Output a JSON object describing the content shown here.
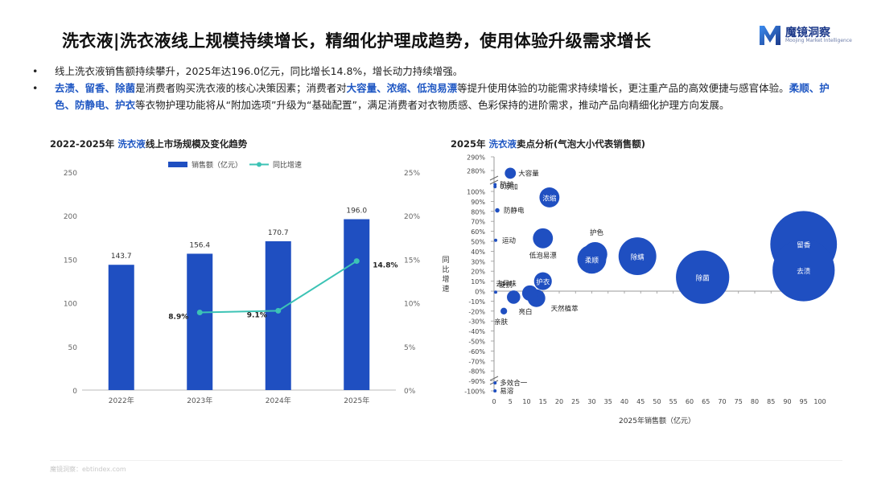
{
  "header": {
    "title": "洗衣液|洗衣液线上规模持续增长，精细化护理成趋势，使用体验升级需求增长",
    "logo_name": "魔镜洞察",
    "logo_sub": "Moojing Market Intelligence",
    "logo_color": "#1f57c3"
  },
  "bullets": {
    "symbol": "•",
    "b1": "线上洗衣液销售额持续攀升，2025年达196.0亿元，同比增长14.8%，增长动力持续增强。",
    "b2": {
      "k1": "去渍",
      "s1": "、",
      "k2": "留香",
      "s2": "、",
      "k3": "除菌",
      "t1": "是消费者购买洗衣液的核心决策因素；消费者对",
      "k4": "大容量",
      "s3": "、",
      "k5": "浓缩",
      "s4": "、",
      "k6": "低泡易漂",
      "t2": "等提升使用体验的功能需求持续增长，更注重产品的高效便捷与感官体验。",
      "k7": "柔顺",
      "s5": "、",
      "k8": "护色",
      "s6": "、",
      "k9": "防静电",
      "s7": "、",
      "k10": "护衣",
      "t3": "等衣物护理功能将从“附加选项”升级为“基础配置”，满足消费者对衣物质感、色彩保持的进阶需求，推动产品向精细化护理方向发展。"
    }
  },
  "left_chart": {
    "title_pre": "2022-2025年",
    "title_hl": "洗衣液",
    "title_post": "线上市场规模及变化趋势"
  },
  "right_chart": {
    "title_pre": "2025年",
    "title_hl": "洗衣液",
    "title_post": "卖点分析(气泡大小代表销售额)"
  },
  "footer": {
    "text": "魔镜洞察：ebtindex.com"
  },
  "chart_data": [
    {
      "type": "bar",
      "categories": [
        "2022年",
        "2023年",
        "2024年",
        "2025年"
      ],
      "series": [
        {
          "name": "销售额（亿元）",
          "type": "bar",
          "values": [
            143.7,
            156.4,
            170.7,
            196.0
          ],
          "value_labels": [
            "143.7",
            "156.4",
            "170.7",
            "196.0"
          ],
          "color": "#1f4fc1"
        },
        {
          "name": "同比增速",
          "type": "line",
          "axis": "right",
          "values": [
            null,
            8.9,
            9.1,
            14.8
          ],
          "value_labels": [
            "",
            "8.9%",
            "9.1%",
            "14.8%"
          ],
          "color": "#3cc3b5"
        }
      ],
      "ylim": [
        0,
        250
      ],
      "yticks": [
        "0",
        "50",
        "100",
        "150",
        "200",
        "250"
      ],
      "y2lim": [
        0,
        25
      ],
      "y2ticks": [
        "0%",
        "5%",
        "10%",
        "15%",
        "20%",
        "25%"
      ],
      "legend": "top"
    },
    {
      "type": "scatter",
      "xlabel": "2025年销售额（亿元）",
      "ylabel": "同比增速",
      "xlim": [
        0,
        100
      ],
      "xticks": [
        "0",
        "5",
        "10",
        "15",
        "20",
        "25",
        "30",
        "35",
        "40",
        "45",
        "50",
        "55",
        "60",
        "65",
        "70",
        "75",
        "80",
        "85",
        "90",
        "95",
        "100"
      ],
      "yticks": [
        "-100%",
        "-90%",
        "-80%",
        "-70%",
        "-60%",
        "-50%",
        "-40%",
        "-30%",
        "-20%",
        "-10%",
        "0%",
        "10%",
        "20%",
        "30%",
        "40%",
        "50%",
        "60%",
        "70%",
        "80%",
        "90%",
        "100%",
        "280%",
        "290%"
      ],
      "color": "#1f4fc1",
      "points": [
        {
          "label": "留香",
          "x": 95,
          "y": 47,
          "size": 30
        },
        {
          "label": "去渍",
          "x": 95,
          "y": 21,
          "size": 28
        },
        {
          "label": "除菌",
          "x": 64,
          "y": 14,
          "size": 24
        },
        {
          "label": "除螨",
          "x": 44,
          "y": 35,
          "size": 17
        },
        {
          "label": "柔顺",
          "x": 30,
          "y": 32,
          "size": 13
        },
        {
          "label": "护色",
          "x": 31,
          "y": 37,
          "size": 11
        },
        {
          "label": "低泡易漂",
          "x": 15,
          "y": 53,
          "size": 9
        },
        {
          "label": "浓缩",
          "x": 17,
          "y": 94,
          "size": 9
        },
        {
          "label": "护衣",
          "x": 15,
          "y": 10,
          "size": 8
        },
        {
          "label": "天然植萃",
          "x": 13,
          "y": -7,
          "size": 8
        },
        {
          "label": "亮白",
          "x": 11,
          "y": -2,
          "size": 7
        },
        {
          "label": "去异味",
          "x": 6,
          "y": -6,
          "size": 6
        },
        {
          "label": "大容量",
          "x": 5,
          "y": 278,
          "size": 5
        },
        {
          "label": "亲肤",
          "x": 3,
          "y": -20,
          "size": 3
        },
        {
          "label": "防静电",
          "x": 1,
          "y": 81,
          "size": 2
        },
        {
          "label": "运动",
          "x": 0.5,
          "y": 51,
          "size": 1
        },
        {
          "label": "便携",
          "x": 0.5,
          "y": -1,
          "size": 1
        },
        {
          "label": "防皱",
          "x": 0.3,
          "y": 119,
          "size": 1
        },
        {
          "label": "0添加",
          "x": 0.3,
          "y": 113,
          "size": 1
        },
        {
          "label": "多效合一",
          "x": 0.3,
          "y": -92,
          "size": 1
        },
        {
          "label": "易溶",
          "x": 0.3,
          "y": -100,
          "size": 1
        }
      ]
    }
  ]
}
